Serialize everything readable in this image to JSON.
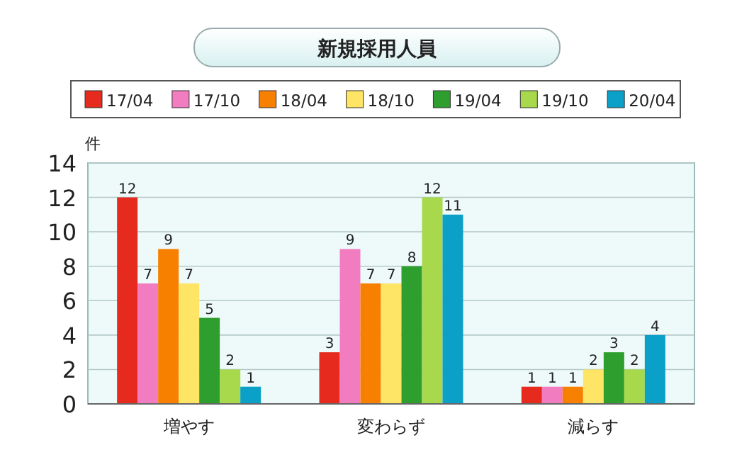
{
  "chart_data": {
    "type": "bar",
    "title": "新規採用人員",
    "ylabel": "件",
    "categories": [
      "増やす",
      "変わらず",
      "減らす"
    ],
    "series": [
      {
        "name": "17/04",
        "color": "#e62a1e",
        "values": [
          12,
          3,
          1
        ]
      },
      {
        "name": "17/10",
        "color": "#f27cc0",
        "values": [
          7,
          9,
          1
        ]
      },
      {
        "name": "18/04",
        "color": "#f78000",
        "values": [
          9,
          7,
          1
        ]
      },
      {
        "name": "18/10",
        "color": "#ffe566",
        "values": [
          7,
          7,
          2
        ]
      },
      {
        "name": "19/04",
        "color": "#2e9e2e",
        "values": [
          5,
          8,
          3
        ]
      },
      {
        "name": "19/10",
        "color": "#a8d84c",
        "values": [
          2,
          12,
          2
        ]
      },
      {
        "name": "20/04",
        "color": "#0aa0c8",
        "values": [
          1,
          11,
          4
        ]
      }
    ],
    "ylim": [
      0,
      14
    ],
    "yticks": [
      0,
      2,
      4,
      6,
      8,
      10,
      12,
      14
    ],
    "grid": "y",
    "legend": "top",
    "data_labels": true
  }
}
